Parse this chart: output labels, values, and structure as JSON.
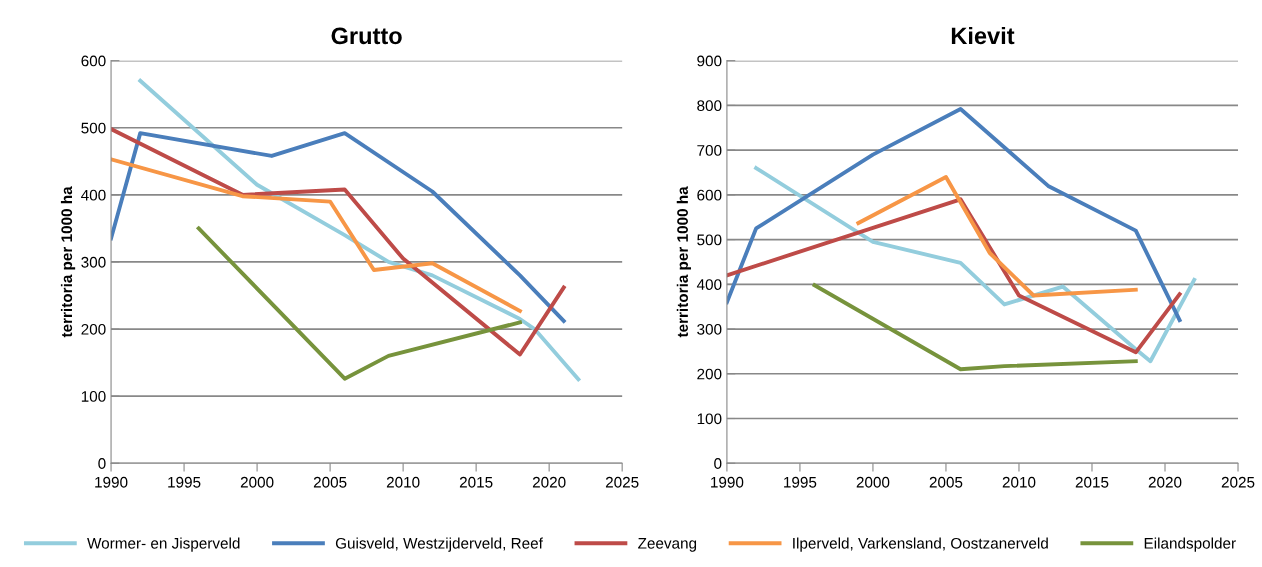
{
  "chart_data": [
    {
      "type": "line",
      "title": "Grutto",
      "ylabel": "territoria per 1000 ha",
      "xlim": [
        1990,
        2025
      ],
      "xticks": [
        1990,
        1995,
        2000,
        2005,
        2010,
        2015,
        2020,
        2025
      ],
      "ylim": [
        0,
        600
      ],
      "yticks": [
        0,
        100,
        200,
        300,
        400,
        500,
        600
      ],
      "grid": "y",
      "legend": "bottom",
      "marker": "none",
      "line_style": "solid",
      "series": [
        {
          "name": "Wormer- en Jisperveld",
          "color": "#93cddd",
          "x": [
            1992,
            2000,
            2006,
            2009,
            2012,
            2018,
            2019,
            2022
          ],
          "values": [
            570,
            415,
            340,
            300,
            280,
            215,
            200,
            125
          ]
        },
        {
          "name": "Guisveld, Westzijderveld, Reef",
          "color": "#4a7ebb",
          "x": [
            1990,
            1992,
            2001,
            2006,
            2012,
            2018,
            2021
          ],
          "values": [
            335,
            492,
            458,
            492,
            405,
            280,
            212
          ]
        },
        {
          "name": "Zeevang",
          "color": "#be4b48",
          "x": [
            1990,
            1999,
            2006,
            2010,
            2018,
            2021
          ],
          "values": [
            498,
            400,
            408,
            305,
            162,
            262
          ]
        },
        {
          "name": "Ilperveld, Varkensland, Oostzanerveld",
          "color": "#f79646",
          "x": [
            1990,
            1999,
            2005,
            2008,
            2012,
            2018
          ],
          "values": [
            453,
            398,
            390,
            288,
            298,
            227
          ]
        },
        {
          "name": "Eilandspolder",
          "color": "#77933c",
          "x": [
            1996,
            2006,
            2009,
            2018
          ],
          "values": [
            350,
            126,
            160,
            210
          ]
        }
      ]
    },
    {
      "type": "line",
      "title": "Kievit",
      "ylabel": "territoria per 1000 ha",
      "xlim": [
        1990,
        2025
      ],
      "xticks": [
        1990,
        1995,
        2000,
        2005,
        2010,
        2015,
        2020,
        2025
      ],
      "ylim": [
        0,
        900
      ],
      "yticks": [
        0,
        100,
        200,
        300,
        400,
        500,
        600,
        700,
        800,
        900
      ],
      "grid": "y",
      "legend": false,
      "marker": "none",
      "line_style": "solid",
      "series": [
        {
          "color": "#93cddd",
          "x": [
            1992,
            2000,
            2006,
            2009,
            2013,
            2018,
            2019,
            2022
          ],
          "values": [
            660,
            495,
            448,
            355,
            395,
            255,
            228,
            410
          ]
        },
        {
          "color": "#4a7ebb",
          "x": [
            1990,
            1992,
            2000,
            2006,
            2012,
            2018,
            2021
          ],
          "values": [
            360,
            525,
            690,
            792,
            620,
            520,
            320
          ]
        },
        {
          "color": "#be4b48",
          "x": [
            1990,
            2006,
            2010,
            2018,
            2021
          ],
          "values": [
            420,
            590,
            375,
            248,
            378
          ]
        },
        {
          "color": "#f79646",
          "x": [
            1999,
            2005,
            2008,
            2011,
            2018
          ],
          "values": [
            537,
            640,
            470,
            375,
            388
          ]
        },
        {
          "color": "#77933c",
          "x": [
            1996,
            2006,
            2009,
            2018
          ],
          "values": [
            398,
            210,
            217,
            228
          ]
        }
      ]
    }
  ]
}
